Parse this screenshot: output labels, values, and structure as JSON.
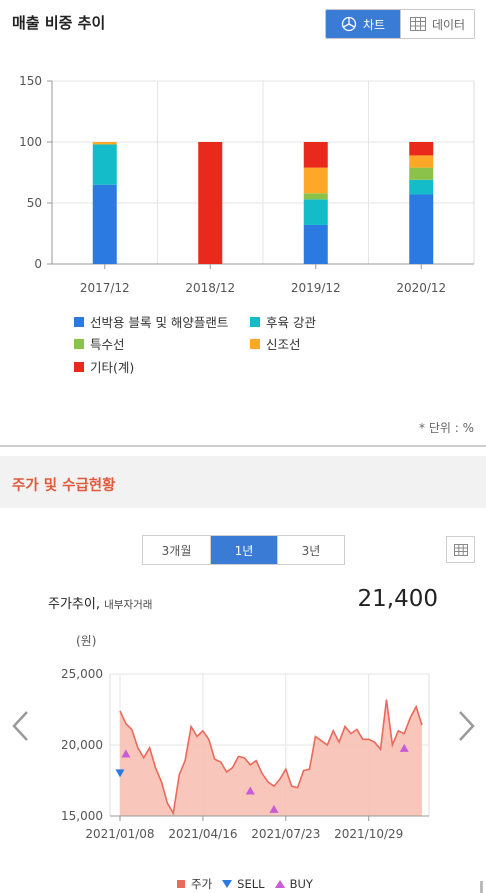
{
  "section1": {
    "title": "매출 비중 추이",
    "toggle": {
      "chart_label": "차트",
      "data_label": "데이터"
    },
    "unit_note": "* 단위 : %"
  },
  "section2": {
    "title": "주가 및 수급현황",
    "periods": [
      "3개월",
      "1년",
      "3년"
    ],
    "active_period": "1년",
    "price_title": "주가추이,",
    "price_subtitle": "내부자거래",
    "price_value": "21,400",
    "unit_label": "(원)"
  },
  "colors": {
    "accent": "#3a7bd5",
    "section_title": "#e05a3a",
    "blue": "#2a7ae2",
    "teal": "#14bcc9",
    "green": "#8bc34a",
    "orange": "#ffa726",
    "red": "#e8291c",
    "price_line": "#e86a5a",
    "price_fill": "#f8c0b5",
    "sell": "#2a7ae2",
    "buy": "#c85bd6"
  },
  "chart_data": [
    {
      "type": "bar",
      "stacked": true,
      "categories": [
        "2017/12",
        "2018/12",
        "2019/12",
        "2020/12"
      ],
      "ylim": [
        0,
        150
      ],
      "yticks": [
        0,
        50,
        100,
        150
      ],
      "grid": true,
      "legend_position": "bottom",
      "series": [
        {
          "name": "선박용 블록 및 해양플랜트",
          "color": "#2a7ae2",
          "values": [
            65,
            0,
            32,
            57
          ]
        },
        {
          "name": "후육 강관",
          "color": "#14bcc9",
          "values": [
            33,
            0,
            21,
            12
          ]
        },
        {
          "name": "특수선",
          "color": "#8bc34a",
          "values": [
            0,
            0,
            5,
            10
          ]
        },
        {
          "name": "신조선",
          "color": "#ffa726",
          "values": [
            2,
            0,
            21,
            10
          ]
        },
        {
          "name": "기타(계)",
          "color": "#e8291c",
          "values": [
            0,
            100,
            21,
            11
          ]
        }
      ]
    },
    {
      "type": "area",
      "ylabel": "(원)",
      "ylim": [
        15000,
        25000
      ],
      "yticks": [
        "15,000",
        "20,000",
        "25,000"
      ],
      "yticks_values": [
        15000,
        20000,
        25000
      ],
      "xticks": [
        "2021/01/08",
        "2021/04/16",
        "2021/07/23",
        "2021/10/29"
      ],
      "grid": true,
      "legend_position": "bottom",
      "legend": [
        {
          "name": "주가",
          "marker": "square",
          "color": "#e86a5a"
        },
        {
          "name": "SELL",
          "marker": "triangle-down",
          "color": "#2a7ae2"
        },
        {
          "name": "BUY",
          "marker": "triangle-up",
          "color": "#c85bd6"
        }
      ],
      "series": [
        {
          "name": "주가",
          "values": [
            22400,
            21500,
            21100,
            19800,
            19100,
            19800,
            18400,
            17400,
            15900,
            15200,
            17900,
            18900,
            21300,
            20600,
            21000,
            20400,
            19000,
            18800,
            18100,
            18400,
            19200,
            19100,
            18600,
            18900,
            18000,
            17400,
            17100,
            17600,
            18300,
            17100,
            17000,
            18200,
            18300,
            20600,
            20300,
            20000,
            21000,
            20200,
            21300,
            20800,
            21100,
            20400,
            20400,
            20200,
            19700,
            23200,
            20000,
            21000,
            20800,
            21900,
            22700,
            21400
          ]
        }
      ],
      "sell_markers": [
        {
          "index": 0,
          "value": 18000
        }
      ],
      "buy_markers": [
        {
          "index": 1,
          "value": 19400
        },
        {
          "index": 22,
          "value": 16800
        },
        {
          "index": 26,
          "value": 15500
        },
        {
          "index": 48,
          "value": 19800
        }
      ]
    }
  ]
}
